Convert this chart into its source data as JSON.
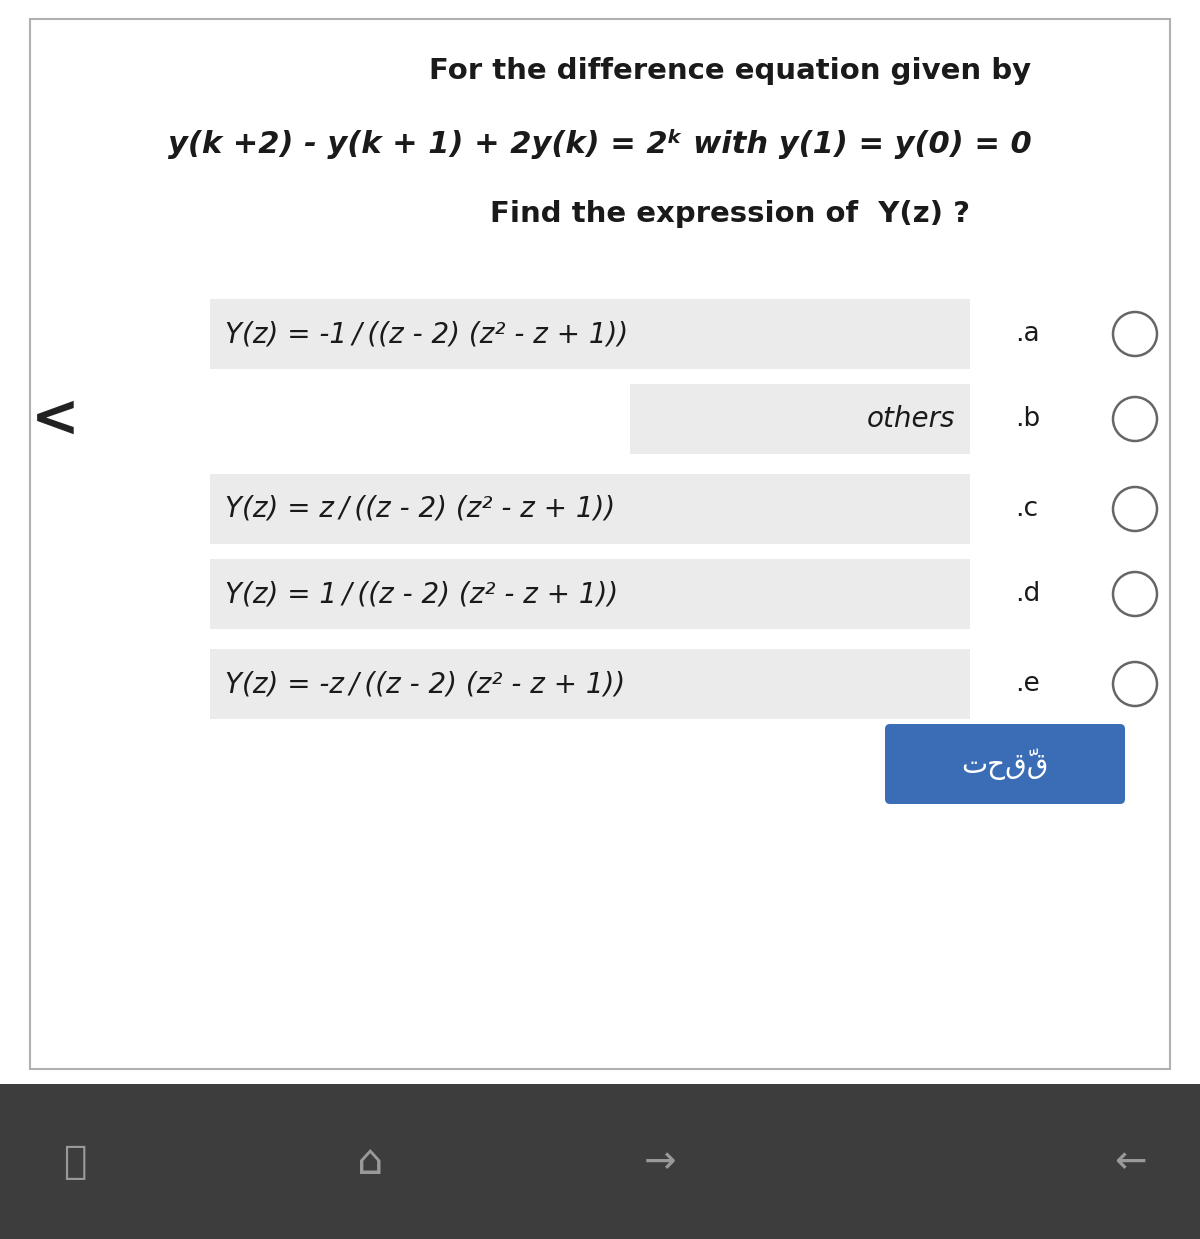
{
  "title_line1": "For the difference equation given by",
  "title_line2_plain": "y(k +2) - y(k + 1) + 2y(k) = 2",
  "title_line2_super": "k",
  "title_line2_rest": " with y(1) = y(0) = 0",
  "title_line3": "Find the expression of  Y(z) ?",
  "options": [
    {
      "label": ".a",
      "text": "Y(z) = -1 / ((z - 2) (z² - z + 1))",
      "short": false
    },
    {
      "label": ".b",
      "text": "others",
      "short": true
    },
    {
      "label": ".c",
      "text": "Y(z) = z / ((z - 2) (z² - z + 1))",
      "short": false
    },
    {
      "label": ".d",
      "text": "Y(z) = 1 / ((z - 2) (z² - z + 1))",
      "short": false
    },
    {
      "label": ".e",
      "text": "Y(z) = -z / ((z - 2) (z² - z + 1))",
      "short": false
    }
  ],
  "button_text": "تحقّق",
  "button_color": "#3a6db5",
  "button_text_color": "#ffffff",
  "background_color": "#ffffff",
  "card_border_color": "#b0b0b0",
  "highlight_color": "#ebebeb",
  "radio_color": "#666666",
  "left_arrow_color": "#222222",
  "bottom_bar_color": "#3d3d3d",
  "bottom_icons_color": "#999999",
  "title_font_size": 21,
  "option_font_size": 20,
  "label_font_size": 19
}
